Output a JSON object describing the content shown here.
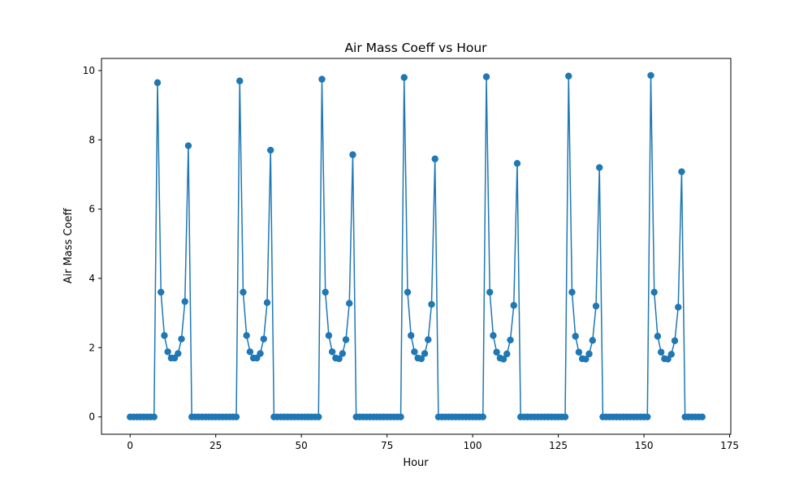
{
  "chart_data": {
    "type": "line",
    "title": "Air Mass Coeff vs Hour",
    "xlabel": "Hour",
    "ylabel": "Air Mass Coeff",
    "xlim": [
      -8.35,
      175.35
    ],
    "ylim": [
      -0.5,
      10.35
    ],
    "xticks": [
      0,
      25,
      50,
      75,
      100,
      125,
      150,
      175
    ],
    "yticks": [
      0,
      2,
      4,
      6,
      8,
      10
    ],
    "grid": false,
    "legend": "none",
    "color": "#1f77b4",
    "series": [
      {
        "x": [
          0,
          1,
          2,
          3,
          4,
          5,
          6,
          7,
          8,
          9,
          10,
          11,
          12,
          13,
          14,
          15,
          16,
          17,
          18,
          19,
          20,
          21,
          22,
          23,
          24,
          25,
          26,
          27,
          28,
          29,
          30,
          31,
          32,
          33,
          34,
          35,
          36,
          37,
          38,
          39,
          40,
          41,
          42,
          43,
          44,
          45,
          46,
          47,
          48,
          49,
          50,
          51,
          52,
          53,
          54,
          55,
          56,
          57,
          58,
          59,
          60,
          61,
          62,
          63,
          64,
          65,
          66,
          67,
          68,
          69,
          70,
          71,
          72,
          73,
          74,
          75,
          76,
          77,
          78,
          79,
          80,
          81,
          82,
          83,
          84,
          85,
          86,
          87,
          88,
          89,
          90,
          91,
          92,
          93,
          94,
          95,
          96,
          97,
          98,
          99,
          100,
          101,
          102,
          103,
          104,
          105,
          106,
          107,
          108,
          109,
          110,
          111,
          112,
          113,
          114,
          115,
          116,
          117,
          118,
          119,
          120,
          121,
          122,
          123,
          124,
          125,
          126,
          127,
          128,
          129,
          130,
          131,
          132,
          133,
          134,
          135,
          136,
          137,
          138,
          139,
          140,
          141,
          142,
          143,
          144,
          145,
          146,
          147,
          148,
          149,
          150,
          151,
          152,
          153,
          154,
          155,
          156,
          157,
          158,
          159,
          160,
          161,
          162,
          163,
          164,
          165,
          166,
          167
        ],
        "values": [
          0,
          0,
          0,
          0,
          0,
          0,
          0,
          0,
          9.65,
          3.6,
          2.35,
          1.88,
          1.7,
          1.7,
          1.83,
          2.25,
          3.33,
          7.83,
          0,
          0,
          0,
          0,
          0,
          0,
          0,
          0,
          0,
          0,
          0,
          0,
          0,
          0,
          9.7,
          3.6,
          2.35,
          1.88,
          1.7,
          1.7,
          1.83,
          2.25,
          3.3,
          7.7,
          0,
          0,
          0,
          0,
          0,
          0,
          0,
          0,
          0,
          0,
          0,
          0,
          0,
          0,
          9.75,
          3.6,
          2.35,
          1.88,
          1.7,
          1.68,
          1.83,
          2.23,
          3.28,
          7.57,
          0,
          0,
          0,
          0,
          0,
          0,
          0,
          0,
          0,
          0,
          0,
          0,
          0,
          0,
          9.8,
          3.6,
          2.35,
          1.88,
          1.7,
          1.68,
          1.83,
          2.23,
          3.25,
          7.45,
          0,
          0,
          0,
          0,
          0,
          0,
          0,
          0,
          0,
          0,
          0,
          0,
          0,
          0,
          9.82,
          3.6,
          2.35,
          1.87,
          1.7,
          1.67,
          1.82,
          2.22,
          3.22,
          7.32,
          0,
          0,
          0,
          0,
          0,
          0,
          0,
          0,
          0,
          0,
          0,
          0,
          0,
          0,
          9.84,
          3.6,
          2.33,
          1.87,
          1.68,
          1.67,
          1.82,
          2.21,
          3.2,
          7.2,
          0,
          0,
          0,
          0,
          0,
          0,
          0,
          0,
          0,
          0,
          0,
          0,
          0,
          0,
          9.86,
          3.6,
          2.33,
          1.87,
          1.68,
          1.67,
          1.81,
          2.2,
          3.17,
          7.08,
          0,
          0,
          0,
          0,
          0,
          0
        ]
      }
    ]
  }
}
